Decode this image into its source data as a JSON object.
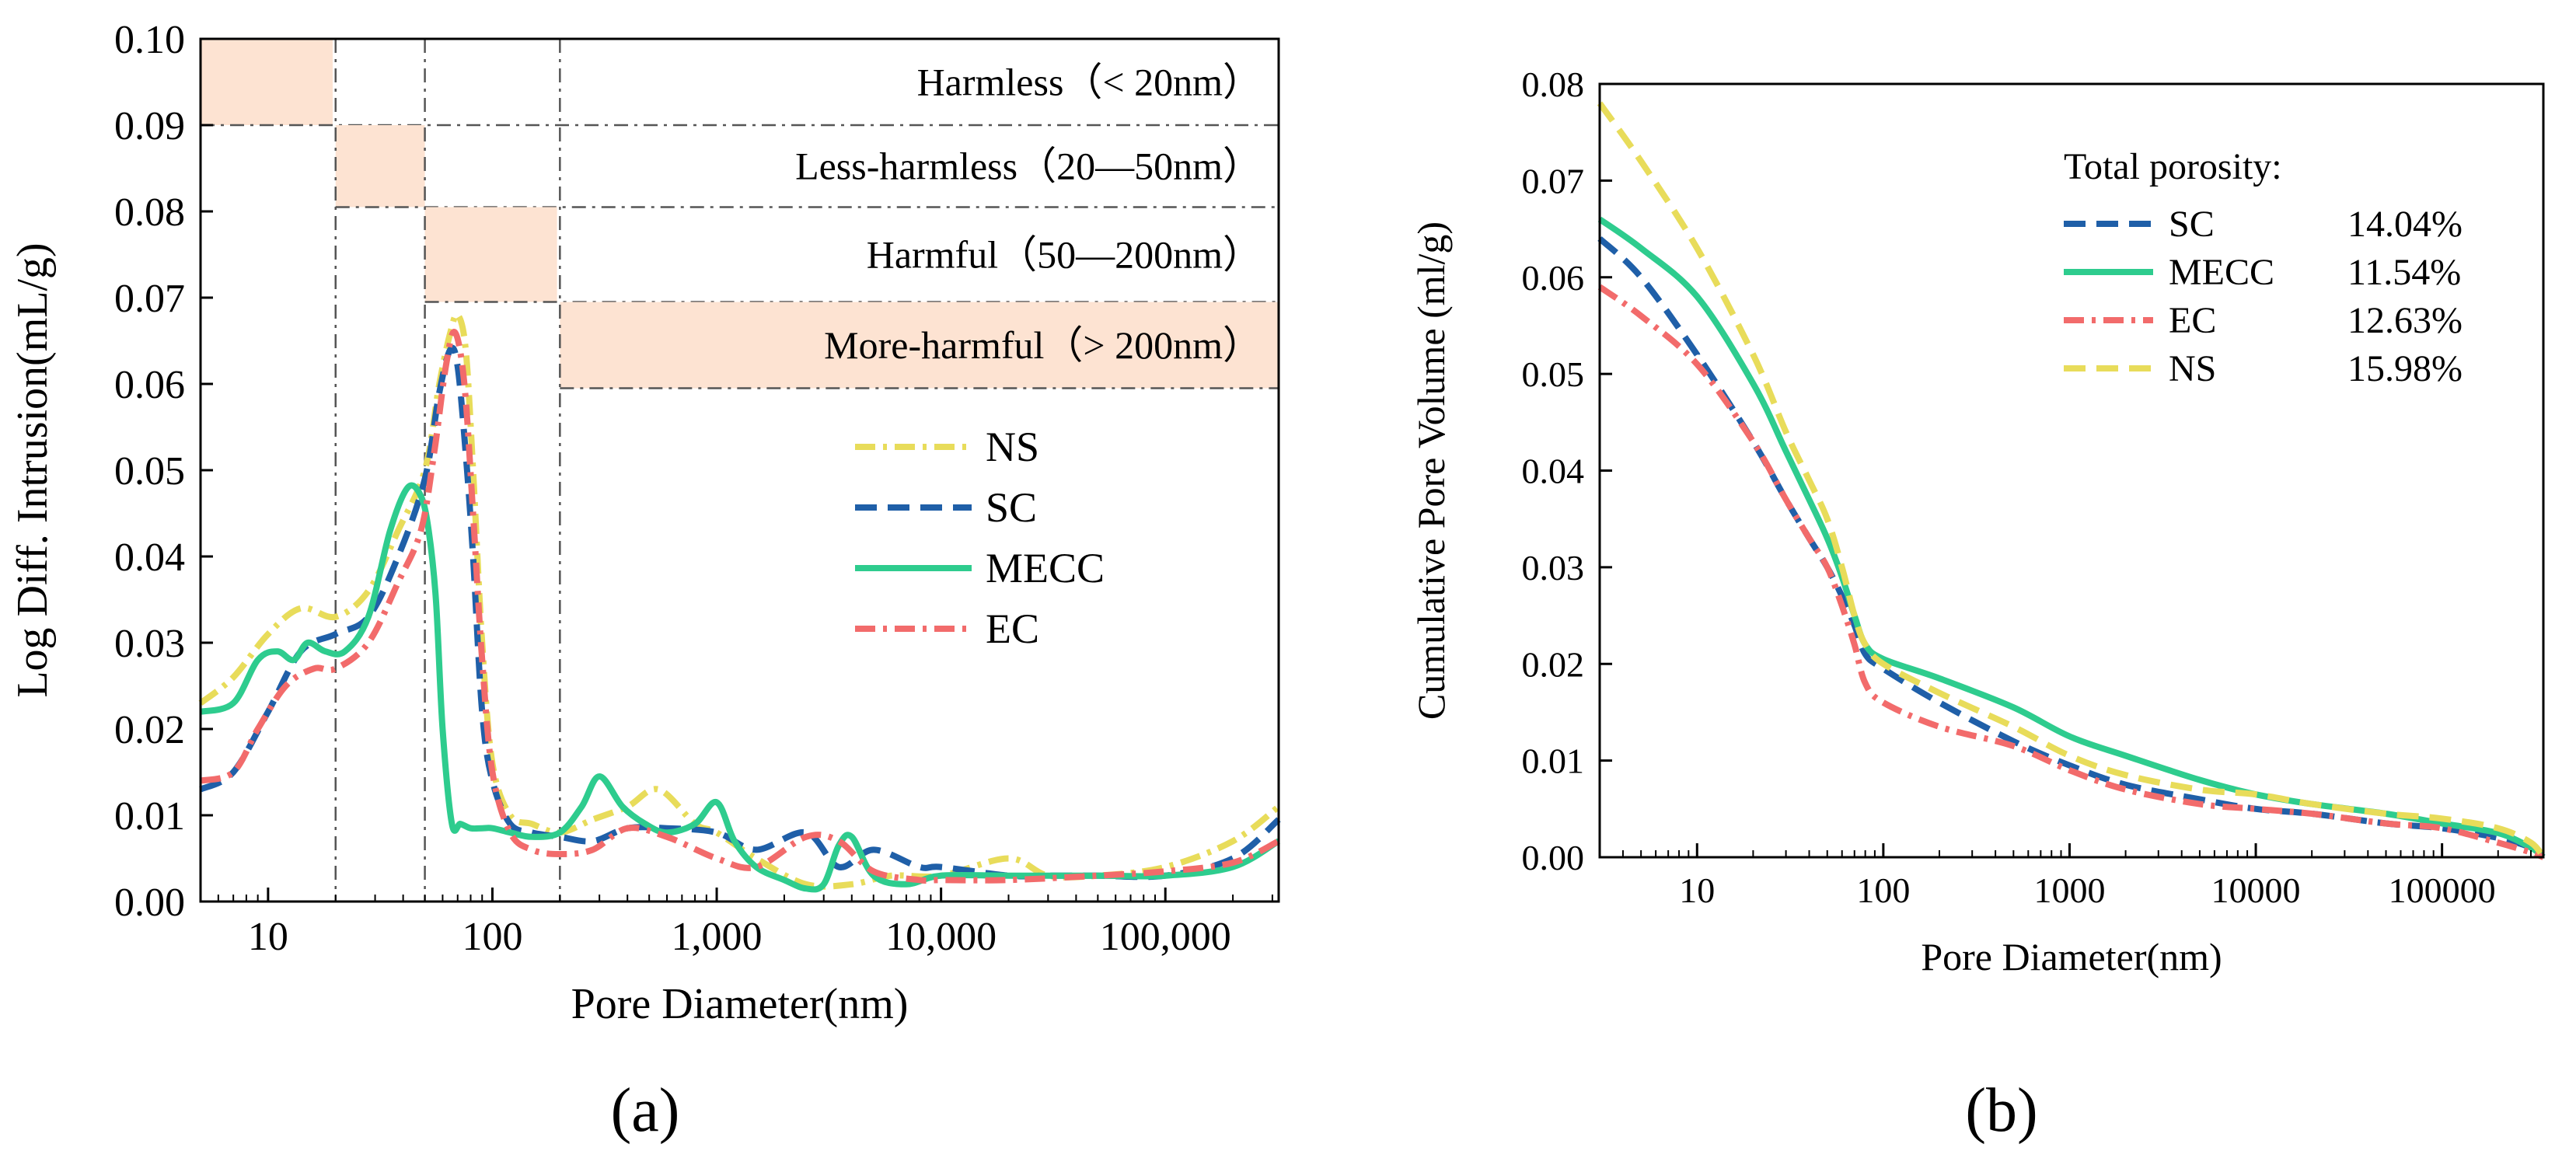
{
  "chart_data": [
    {
      "type": "line",
      "panel_label": "a",
      "ylabel": "Log Diff. Intrusion(mL/g)",
      "xlabel": "Pore Diameter(nm)",
      "xscale": "log",
      "xlim": [
        5,
        320000
      ],
      "ylim": [
        0,
        0.1
      ],
      "x_ticks": [
        10,
        100,
        1000,
        10000,
        100000
      ],
      "x_tick_labels": [
        "10",
        "100",
        "1,000",
        "10,000",
        "100,000"
      ],
      "y_ticks": [
        0,
        0.01,
        0.02,
        0.03,
        0.04,
        0.05,
        0.06,
        0.07,
        0.08,
        0.09,
        0.1
      ],
      "y_tick_labels": [
        "0.00",
        "0.01",
        "0.02",
        "0.03",
        "0.04",
        "0.05",
        "0.06",
        "0.07",
        "0.08",
        "0.09",
        "0.10"
      ],
      "classification_lines_nm": [
        20,
        50,
        200
      ],
      "zones": [
        {
          "label": "Harmless（< 20nm）",
          "x_from": 5,
          "x_to": 20,
          "y_from": 0.09,
          "y_to": 0.1
        },
        {
          "label": "Less-harmless（20—50nm）",
          "x_from": 20,
          "x_to": 50,
          "y_from": 0.0805,
          "y_to": 0.09
        },
        {
          "label": "Harmful（50—200nm）",
          "x_from": 50,
          "x_to": 200,
          "y_from": 0.0695,
          "y_to": 0.0805
        },
        {
          "label": "More-harmful（> 200nm）",
          "x_from": 200,
          "x_to": 320000,
          "y_from": 0.0595,
          "y_to": 0.0695
        }
      ],
      "legend": [
        "NS",
        "SC",
        "MECC",
        "EC"
      ],
      "series": [
        {
          "name": "NS",
          "color": "#e8dc5a",
          "dash": "dashdot",
          "x": [
            5,
            7,
            10,
            14,
            20,
            28,
            38,
            50,
            58,
            65,
            70,
            76,
            82,
            90,
            100,
            120,
            150,
            200,
            280,
            400,
            550,
            800,
            1000,
            1500,
            2500,
            4000,
            6000,
            10000,
            20000,
            30000,
            50000,
            100000,
            200000,
            320000
          ],
          "y": [
            0.023,
            0.026,
            0.031,
            0.034,
            0.033,
            0.036,
            0.043,
            0.05,
            0.06,
            0.066,
            0.068,
            0.064,
            0.05,
            0.03,
            0.016,
            0.01,
            0.009,
            0.008,
            0.0095,
            0.011,
            0.013,
            0.009,
            0.008,
            0.005,
            0.002,
            0.002,
            0.003,
            0.003,
            0.005,
            0.003,
            0.003,
            0.004,
            0.007,
            0.011
          ]
        },
        {
          "name": "SC",
          "color": "#1f5fa8",
          "dash": "dash",
          "x": [
            5,
            7,
            10,
            14,
            20,
            28,
            38,
            50,
            58,
            65,
            70,
            76,
            82,
            90,
            100,
            120,
            150,
            200,
            280,
            400,
            600,
            1000,
            1500,
            2500,
            3500,
            5000,
            8000,
            10000,
            20000,
            30000,
            50000,
            100000,
            200000,
            320000
          ],
          "y": [
            0.013,
            0.015,
            0.022,
            0.029,
            0.031,
            0.033,
            0.04,
            0.049,
            0.059,
            0.064,
            0.062,
            0.052,
            0.04,
            0.022,
            0.014,
            0.009,
            0.008,
            0.0075,
            0.007,
            0.0085,
            0.0085,
            0.008,
            0.006,
            0.008,
            0.004,
            0.006,
            0.004,
            0.004,
            0.003,
            0.003,
            0.003,
            0.003,
            0.005,
            0.0095
          ]
        },
        {
          "name": "MECC",
          "color": "#2ecc8e",
          "dash": "solid",
          "x": [
            5,
            7,
            9,
            11,
            13,
            15,
            18,
            22,
            28,
            35,
            42,
            48,
            52,
            56,
            60,
            66,
            72,
            80,
            90,
            100,
            120,
            150,
            200,
            250,
            300,
            380,
            480,
            600,
            800,
            1000,
            1200,
            1500,
            2000,
            2500,
            3000,
            3500,
            4000,
            5000,
            7000,
            10000,
            20000,
            50000,
            100000,
            200000,
            320000
          ],
          "y": [
            0.022,
            0.023,
            0.028,
            0.029,
            0.028,
            0.03,
            0.029,
            0.029,
            0.033,
            0.043,
            0.048,
            0.047,
            0.043,
            0.035,
            0.02,
            0.009,
            0.009,
            0.0085,
            0.0085,
            0.0085,
            0.008,
            0.0075,
            0.008,
            0.011,
            0.0145,
            0.011,
            0.009,
            0.008,
            0.009,
            0.0115,
            0.007,
            0.004,
            0.0025,
            0.0015,
            0.002,
            0.0065,
            0.0075,
            0.003,
            0.002,
            0.003,
            0.003,
            0.003,
            0.003,
            0.004,
            0.007
          ]
        },
        {
          "name": "EC",
          "color": "#f26b6b",
          "dash": "dashdot",
          "x": [
            5,
            7,
            9,
            12,
            16,
            20,
            28,
            38,
            48,
            55,
            62,
            68,
            75,
            82,
            90,
            100,
            120,
            150,
            200,
            280,
            400,
            600,
            1000,
            1500,
            2500,
            3500,
            5000,
            8000,
            10000,
            20000,
            50000,
            100000,
            200000,
            320000
          ],
          "y": [
            0.014,
            0.015,
            0.02,
            0.025,
            0.027,
            0.027,
            0.03,
            0.037,
            0.043,
            0.052,
            0.062,
            0.066,
            0.06,
            0.045,
            0.028,
            0.015,
            0.008,
            0.006,
            0.0055,
            0.006,
            0.0085,
            0.0075,
            0.005,
            0.004,
            0.0075,
            0.007,
            0.0035,
            0.0025,
            0.0025,
            0.0025,
            0.003,
            0.0035,
            0.0045,
            0.007
          ]
        }
      ]
    },
    {
      "type": "line",
      "panel_label": "b",
      "ylabel": "Cumulative Pore Volume (ml/g)",
      "xlabel": "Pore Diameter(nm)",
      "xscale": "log",
      "xlim": [
        3,
        350000
      ],
      "ylim": [
        0,
        0.08
      ],
      "x_ticks": [
        10,
        100,
        1000,
        10000,
        100000
      ],
      "x_tick_labels": [
        "10",
        "100",
        "1000",
        "10000",
        "100000"
      ],
      "y_ticks": [
        0,
        0.01,
        0.02,
        0.03,
        0.04,
        0.05,
        0.06,
        0.07,
        0.08
      ],
      "y_tick_labels": [
        "0.00",
        "0.01",
        "0.02",
        "0.03",
        "0.04",
        "0.05",
        "0.06",
        "0.07",
        "0.08"
      ],
      "legend_title": "Total porosity:",
      "legend": [
        {
          "name": "SC",
          "value": "14.04%"
        },
        {
          "name": "MECC",
          "value": "11.54%"
        },
        {
          "name": "EC",
          "value": "12.63%"
        },
        {
          "name": "NS",
          "value": "15.98%"
        }
      ],
      "series": [
        {
          "name": "SC",
          "color": "#1f5fa8",
          "dash": "dash",
          "x": [
            3,
            5,
            10,
            20,
            30,
            40,
            50,
            60,
            70,
            80,
            100,
            200,
            500,
            1000,
            2000,
            5000,
            10000,
            20000,
            50000,
            100000,
            200000,
            300000,
            350000
          ],
          "y": [
            0.064,
            0.06,
            0.052,
            0.043,
            0.037,
            0.033,
            0.03,
            0.027,
            0.024,
            0.021,
            0.0195,
            0.016,
            0.012,
            0.0095,
            0.0075,
            0.006,
            0.005,
            0.0045,
            0.0035,
            0.003,
            0.002,
            0.001,
            0.0
          ]
        },
        {
          "name": "MECC",
          "color": "#2ecc8e",
          "dash": "solid",
          "x": [
            3,
            5,
            10,
            20,
            30,
            40,
            50,
            60,
            70,
            80,
            100,
            200,
            500,
            1000,
            2000,
            5000,
            10000,
            20000,
            50000,
            100000,
            200000,
            300000,
            350000
          ],
          "y": [
            0.066,
            0.063,
            0.058,
            0.049,
            0.042,
            0.037,
            0.033,
            0.029,
            0.025,
            0.022,
            0.0205,
            0.0185,
            0.0155,
            0.0125,
            0.0105,
            0.008,
            0.0065,
            0.0055,
            0.0045,
            0.0035,
            0.0025,
            0.001,
            0.0
          ]
        },
        {
          "name": "EC",
          "color": "#f26b6b",
          "dash": "dashdot",
          "x": [
            3,
            5,
            10,
            20,
            30,
            40,
            50,
            60,
            70,
            80,
            100,
            200,
            500,
            1000,
            2000,
            5000,
            10000,
            20000,
            50000,
            100000,
            200000,
            300000,
            350000
          ],
          "y": [
            0.059,
            0.056,
            0.051,
            0.043,
            0.037,
            0.033,
            0.03,
            0.026,
            0.022,
            0.018,
            0.016,
            0.0135,
            0.0115,
            0.009,
            0.007,
            0.0055,
            0.005,
            0.0045,
            0.0035,
            0.003,
            0.0015,
            0.0005,
            0.0
          ]
        },
        {
          "name": "NS",
          "color": "#e8dc5a",
          "dash": "dash",
          "x": [
            3,
            5,
            10,
            20,
            30,
            40,
            50,
            60,
            70,
            80,
            100,
            200,
            500,
            1000,
            2000,
            5000,
            10000,
            20000,
            50000,
            100000,
            200000,
            300000,
            350000
          ],
          "y": [
            0.078,
            0.072,
            0.063,
            0.052,
            0.044,
            0.039,
            0.035,
            0.03,
            0.025,
            0.022,
            0.02,
            0.017,
            0.0135,
            0.0105,
            0.0085,
            0.007,
            0.0065,
            0.0055,
            0.0045,
            0.004,
            0.003,
            0.0015,
            0.0
          ]
        }
      ]
    }
  ]
}
